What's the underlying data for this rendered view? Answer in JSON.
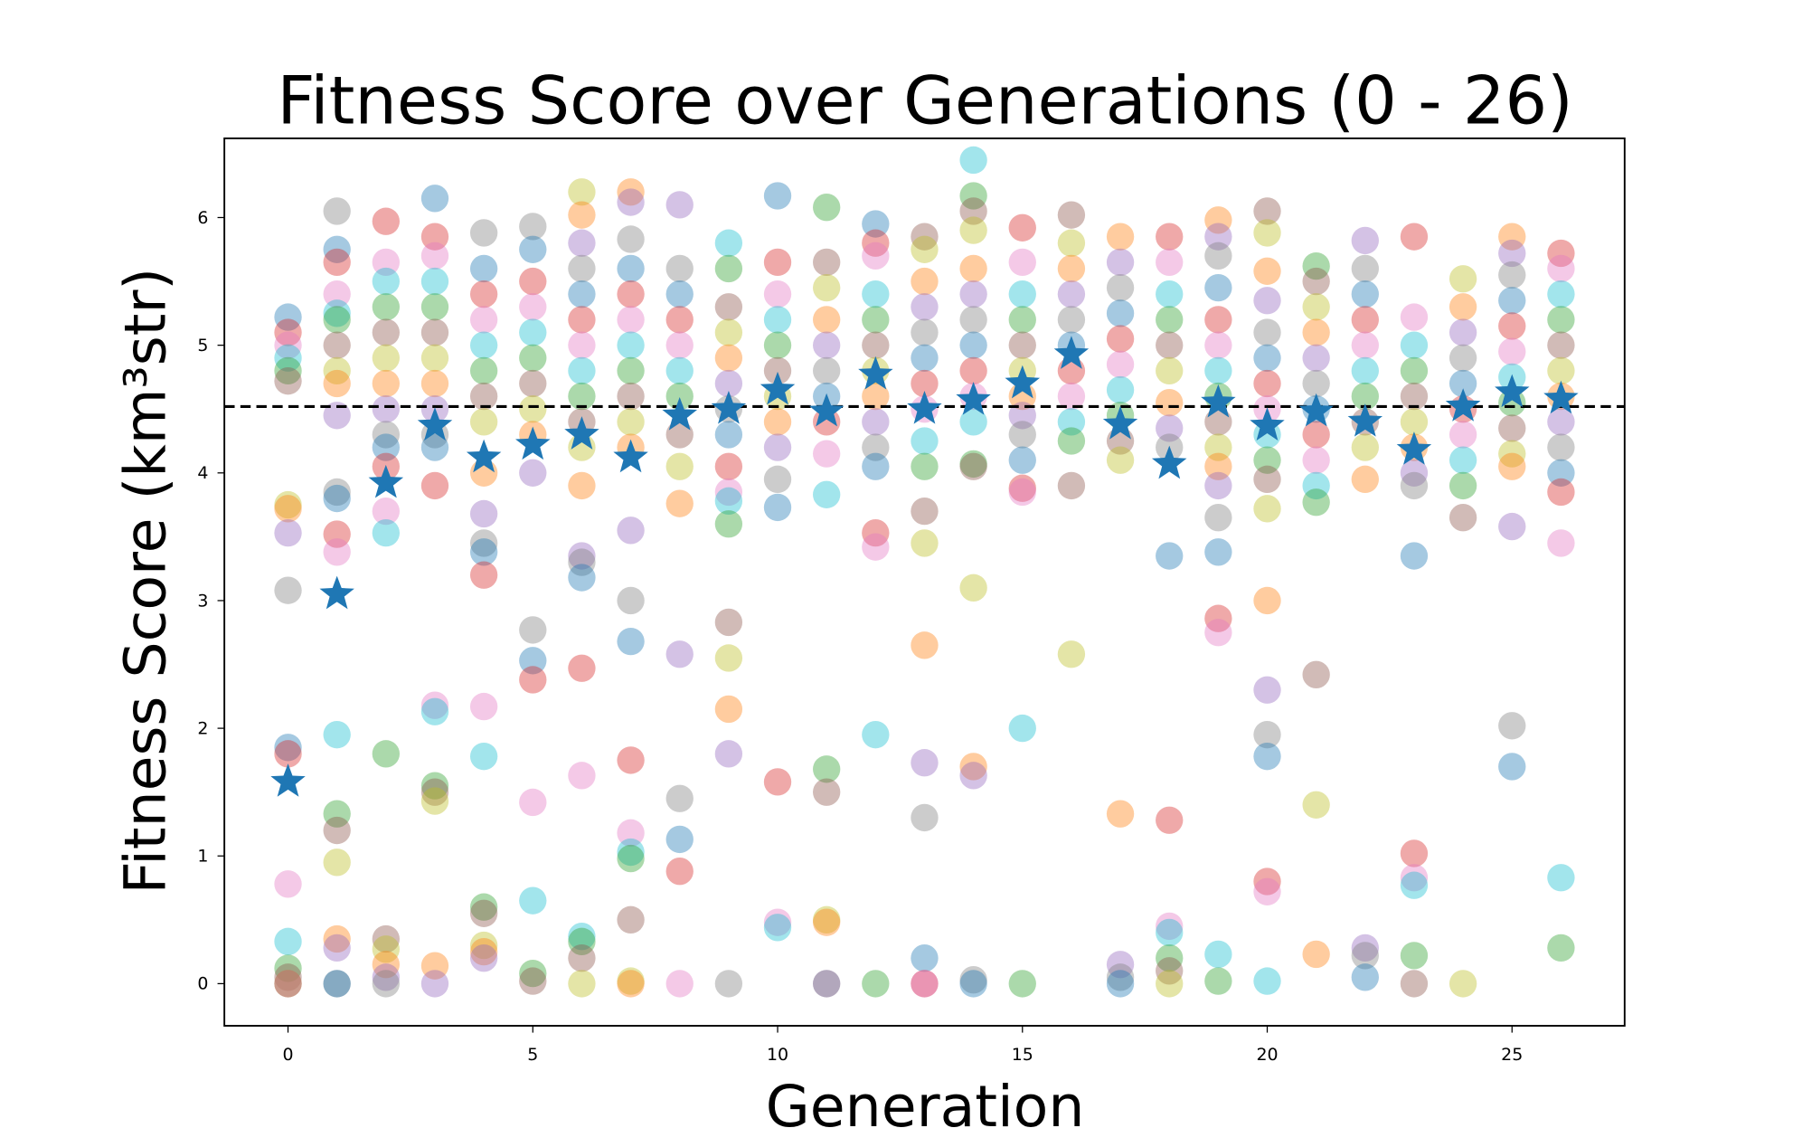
{
  "chart_data": {
    "type": "scatter",
    "title": "Fitness Score over Generations (0 - 26)",
    "xlabel": "Generation",
    "ylabel": "Fitness Score (km³str)",
    "xlim": [
      -1.3,
      27.3
    ],
    "ylim": [
      -0.33,
      6.62
    ],
    "xticks": [
      0,
      5,
      10,
      15,
      20,
      25
    ],
    "yticks": [
      0,
      1,
      2,
      3,
      4,
      5,
      6
    ],
    "reference_line": {
      "y": 4.52,
      "style": "dashed",
      "color": "#000000"
    },
    "best_series": {
      "name": "best",
      "marker": "star",
      "color": "#1f77b4",
      "x": [
        0,
        1,
        2,
        3,
        4,
        5,
        6,
        7,
        8,
        9,
        10,
        11,
        12,
        13,
        14,
        15,
        16,
        17,
        18,
        19,
        20,
        21,
        22,
        23,
        24,
        25,
        26
      ],
      "y": [
        1.58,
        3.05,
        3.92,
        4.37,
        4.12,
        4.22,
        4.3,
        4.12,
        4.45,
        4.5,
        4.65,
        4.48,
        4.77,
        4.5,
        4.57,
        4.7,
        4.93,
        4.38,
        4.07,
        4.55,
        4.37,
        4.48,
        4.4,
        4.18,
        4.52,
        4.63,
        4.58
      ]
    },
    "population_colors": [
      "#1f77b4",
      "#ff7f0e",
      "#2ca02c",
      "#d62728",
      "#9467bd",
      "#8c564b",
      "#e377c2",
      "#7f7f7f",
      "#bcbd22",
      "#17becf"
    ],
    "population": [
      [
        5.22,
        5.1,
        5.0,
        4.9,
        4.8,
        4.72,
        3.75,
        3.72,
        3.53,
        3.08,
        1.85,
        1.8,
        0.78,
        0.33,
        0.12,
        0.05,
        0,
        0,
        0
      ],
      [
        6.05,
        5.75,
        5.65,
        5.4,
        5.25,
        5.2,
        5.0,
        4.8,
        4.7,
        4.45,
        3.85,
        3.8,
        3.52,
        3.38,
        1.95,
        1.33,
        1.2,
        0.95,
        0.35,
        0.28,
        0,
        0
      ],
      [
        5.97,
        5.65,
        5.5,
        5.3,
        5.1,
        4.9,
        4.7,
        4.5,
        4.3,
        4.2,
        4.05,
        3.7,
        3.53,
        1.8,
        0.35,
        0.27,
        0.15,
        0.05,
        0
      ],
      [
        6.15,
        5.85,
        5.7,
        5.5,
        5.3,
        5.1,
        4.9,
        4.7,
        4.5,
        4.3,
        4.2,
        3.9,
        2.18,
        2.13,
        1.55,
        1.5,
        1.43,
        0.14,
        0
      ],
      [
        5.88,
        5.6,
        5.4,
        5.2,
        5.0,
        4.8,
        4.6,
        4.4,
        4.0,
        3.68,
        3.45,
        3.38,
        3.2,
        2.17,
        1.78,
        0.6,
        0.55,
        0.3,
        0.25,
        0.2
      ],
      [
        5.93,
        5.75,
        5.5,
        5.3,
        5.1,
        4.9,
        4.7,
        4.5,
        4.3,
        4.0,
        2.77,
        2.53,
        2.38,
        1.42,
        0.65,
        0.08,
        0.02
      ],
      [
        6.2,
        6.02,
        5.8,
        5.6,
        5.4,
        5.2,
        5.0,
        4.8,
        4.6,
        4.4,
        4.2,
        3.9,
        3.35,
        3.3,
        3.18,
        2.47,
        1.63,
        0.37,
        0.33,
        0.2,
        0
      ],
      [
        6.2,
        6.12,
        5.83,
        5.6,
        5.4,
        5.2,
        5.0,
        4.8,
        4.6,
        4.4,
        4.2,
        3.55,
        3.0,
        2.68,
        1.75,
        1.18,
        1.03,
        0.98,
        0.5,
        0.02,
        0
      ],
      [
        6.1,
        5.6,
        5.4,
        5.2,
        5.0,
        4.8,
        4.6,
        4.3,
        4.05,
        3.76,
        2.58,
        1.45,
        1.13,
        0.88,
        0
      ],
      [
        5.8,
        5.6,
        5.3,
        5.1,
        4.9,
        4.7,
        4.5,
        4.3,
        4.05,
        3.85,
        3.78,
        3.6,
        2.83,
        2.55,
        2.15,
        1.8,
        0
      ],
      [
        6.17,
        5.65,
        5.4,
        5.2,
        5.0,
        4.8,
        4.6,
        4.4,
        4.2,
        3.95,
        3.73,
        1.58,
        0.48,
        0.44
      ],
      [
        6.08,
        5.65,
        5.45,
        5.2,
        5.0,
        4.8,
        4.6,
        4.4,
        4.15,
        3.83,
        1.68,
        1.5,
        0.5,
        0.48,
        0,
        0
      ],
      [
        5.95,
        5.8,
        5.7,
        5.4,
        5.2,
        5.0,
        4.8,
        4.6,
        4.4,
        4.2,
        4.05,
        3.53,
        3.42,
        1.95,
        0
      ],
      [
        5.85,
        5.75,
        5.5,
        5.3,
        5.1,
        4.9,
        4.7,
        4.5,
        4.25,
        4.05,
        3.7,
        3.45,
        2.65,
        1.73,
        1.3,
        0.2,
        0,
        0
      ],
      [
        6.45,
        6.17,
        6.05,
        5.9,
        5.6,
        5.4,
        5.2,
        5.0,
        4.8,
        4.6,
        4.4,
        4.07,
        4.05,
        3.1,
        1.7,
        1.63,
        0.03,
        0
      ],
      [
        5.92,
        5.65,
        5.4,
        5.2,
        5.0,
        4.8,
        4.6,
        4.45,
        4.3,
        4.1,
        3.88,
        3.85,
        2.0,
        0
      ],
      [
        6.02,
        5.8,
        5.6,
        5.4,
        5.2,
        5.0,
        4.8,
        4.6,
        4.4,
        4.25,
        3.9,
        2.58
      ],
      [
        5.85,
        5.65,
        5.45,
        5.25,
        5.05,
        4.85,
        4.65,
        4.45,
        4.25,
        4.1,
        1.33,
        0.15,
        0.05,
        0
      ],
      [
        5.85,
        5.65,
        5.4,
        5.2,
        5.0,
        4.8,
        4.55,
        4.35,
        4.2,
        3.35,
        1.28,
        0.45,
        0.4,
        0.2,
        0.1,
        0
      ],
      [
        5.98,
        5.85,
        5.7,
        5.45,
        5.2,
        5.0,
        4.8,
        4.6,
        4.4,
        4.2,
        4.05,
        3.9,
        3.65,
        3.38,
        2.86,
        2.75,
        0.23,
        0.02
      ],
      [
        6.05,
        5.88,
        5.58,
        5.35,
        5.1,
        4.9,
        4.7,
        4.5,
        4.3,
        4.1,
        3.95,
        3.72,
        3.0,
        2.3,
        1.95,
        1.78,
        0.8,
        0.72,
        0.02
      ],
      [
        5.62,
        5.5,
        5.3,
        5.1,
        4.9,
        4.7,
        4.5,
        4.3,
        4.1,
        3.9,
        3.77,
        2.42,
        1.4,
        0.23
      ],
      [
        5.82,
        5.6,
        5.4,
        5.2,
        5.0,
        4.8,
        4.6,
        4.4,
        4.2,
        3.95,
        0.28,
        0.22,
        0.05
      ],
      [
        5.85,
        5.22,
        5.0,
        4.8,
        4.6,
        4.4,
        4.2,
        4.0,
        3.9,
        3.35,
        1.02,
        0.83,
        0.77,
        0.22,
        0
      ],
      [
        5.52,
        5.3,
        5.1,
        4.9,
        4.7,
        4.5,
        4.3,
        4.1,
        3.9,
        3.65,
        0
      ],
      [
        5.85,
        5.72,
        5.55,
        5.35,
        5.15,
        4.95,
        4.75,
        4.55,
        4.35,
        4.15,
        4.05,
        3.58,
        2.02,
        1.7
      ],
      [
        5.72,
        5.6,
        5.4,
        5.2,
        5.0,
        4.8,
        4.6,
        4.4,
        4.2,
        4.0,
        3.85,
        3.45,
        0.83,
        0.28
      ]
    ]
  }
}
